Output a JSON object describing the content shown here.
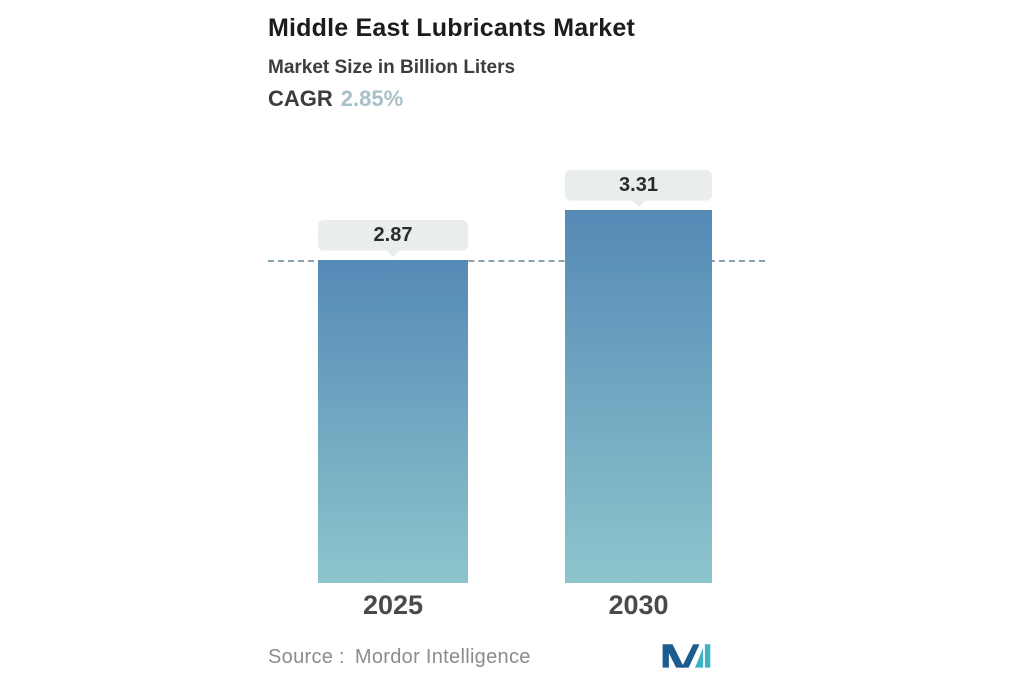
{
  "header": {
    "title": "Middle East Lubricants Market",
    "subtitle": "Market Size in Billion Liters",
    "cagr_label": "CAGR",
    "cagr_value": "2.85%"
  },
  "chart_data": {
    "type": "bar",
    "categories": [
      "2025",
      "2030"
    ],
    "values": [
      2.87,
      3.31
    ],
    "value_labels": [
      "2.87",
      "3.31"
    ],
    "title": "Middle East Lubricants Market",
    "ylabel": "Market Size in Billion Liters",
    "cagr": "2.85%",
    "reference_line_value": 2.87,
    "ylim": [
      0,
      3.31
    ],
    "grid": false,
    "legend": false,
    "bar_color_top": "#548ab6",
    "bar_color_bottom": "#8dc5cd"
  },
  "footer": {
    "source_label": "Source :",
    "source_value": "Mordor Intelligence"
  },
  "colors": {
    "accent_cagr": "#a9c0c8",
    "pill_bg": "#e9edee",
    "dashed_line": "#86a2ae",
    "logo_navy": "#1d5c8f",
    "logo_teal": "#3db3c6"
  }
}
